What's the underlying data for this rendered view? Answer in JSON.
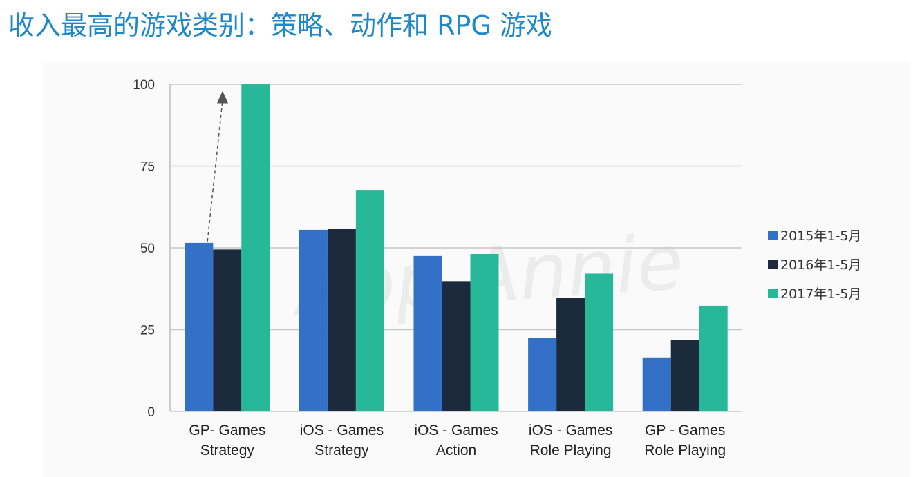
{
  "title": "收入最高的游戏类别：策略、动作和 RPG 游戏",
  "watermark": "App Annie",
  "chart_data": {
    "type": "bar",
    "categories": [
      [
        "GP- Games",
        "Strategy"
      ],
      [
        "iOS - Games",
        "Strategy"
      ],
      [
        "iOS - Games",
        "Action"
      ],
      [
        "iOS - Games",
        "Role Playing"
      ],
      [
        "GP - Games",
        "Role Playing"
      ]
    ],
    "series": [
      {
        "name": "2015年1-5月",
        "color": "#3370c8",
        "values": [
          51.5,
          55.5,
          47.5,
          22.5,
          16.5
        ]
      },
      {
        "name": "2016年1-5月",
        "color": "#1c2a3e",
        "values": [
          49.5,
          55.7,
          39.8,
          34.7,
          21.8
        ]
      },
      {
        "name": "2017年1-5月",
        "color": "#26b899",
        "values": [
          100,
          67.7,
          48.1,
          42.1,
          32.3
        ]
      }
    ],
    "ylim": [
      0,
      100
    ],
    "yticks": [
      0,
      25,
      50,
      75,
      100
    ],
    "grid": true,
    "legend": "right",
    "annotation": "dashed-arrow-up"
  }
}
